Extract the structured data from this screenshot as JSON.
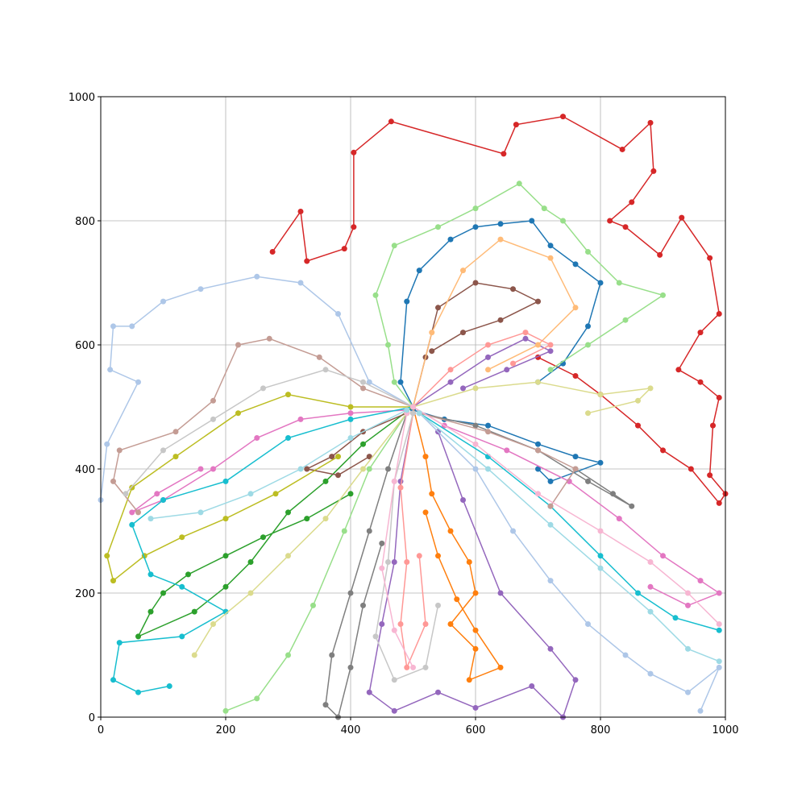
{
  "chart_data": {
    "type": "line",
    "xlim": [
      0,
      1000
    ],
    "ylim": [
      0,
      1000
    ],
    "xticks": [
      0,
      200,
      400,
      600,
      800,
      1000
    ],
    "yticks": [
      0,
      200,
      400,
      600,
      800,
      1000
    ],
    "grid": true,
    "series": [
      {
        "color": "#d62728",
        "x": [
          275,
          320,
          330,
          390,
          405,
          405,
          465,
          645,
          665,
          740,
          835,
          880,
          885,
          850,
          815,
          840,
          895,
          930,
          975,
          990,
          960,
          925,
          960,
          990,
          980,
          975,
          1000,
          990,
          945,
          900,
          860,
          800,
          760,
          700
        ],
        "values": [
          750,
          815,
          735,
          755,
          790,
          910,
          960,
          908,
          955,
          968,
          915,
          958,
          880,
          830,
          800,
          790,
          745,
          805,
          740,
          650,
          620,
          560,
          540,
          515,
          470,
          390,
          360,
          345,
          400,
          430,
          470,
          520,
          550,
          580
        ]
      },
      {
        "color": "#1f77b4",
        "x": [
          500,
          480,
          490,
          510,
          560,
          600,
          640,
          690,
          720,
          760,
          800,
          780,
          740,
          700
        ],
        "values": [
          500,
          540,
          670,
          720,
          770,
          790,
          795,
          800,
          760,
          730,
          700,
          630,
          570,
          540
        ]
      },
      {
        "color": "#1f77b4",
        "x": [
          500,
          550,
          620,
          700,
          760,
          800,
          720,
          700
        ],
        "values": [
          495,
          480,
          470,
          440,
          420,
          410,
          380,
          400
        ]
      },
      {
        "color": "#ff7f0e",
        "x": [
          500,
          520,
          530,
          560,
          590,
          600,
          560,
          600,
          590,
          640,
          600,
          570,
          540,
          520
        ],
        "values": [
          500,
          420,
          360,
          300,
          250,
          200,
          150,
          110,
          60,
          80,
          140,
          190,
          260,
          330
        ]
      },
      {
        "color": "#98df8a",
        "x": [
          500,
          470,
          460,
          440,
          470,
          540,
          600,
          670,
          710,
          740,
          780,
          830,
          900,
          840,
          780,
          720
        ],
        "values": [
          500,
          540,
          600,
          680,
          760,
          790,
          820,
          860,
          820,
          800,
          750,
          700,
          680,
          640,
          600,
          560
        ]
      },
      {
        "color": "#98df8a",
        "x": [
          490,
          430,
          390,
          340,
          300,
          250,
          200
        ],
        "values": [
          490,
          400,
          300,
          180,
          100,
          30,
          10
        ]
      },
      {
        "color": "#2ca02c",
        "x": [
          500,
          420,
          360,
          300,
          240,
          200,
          150,
          60,
          80,
          100,
          140,
          200,
          260,
          330,
          400
        ],
        "values": [
          500,
          440,
          380,
          330,
          250,
          210,
          170,
          130,
          170,
          200,
          230,
          260,
          290,
          320,
          360
        ]
      },
      {
        "color": "#9467bd",
        "x": [
          500,
          560,
          620,
          680,
          720,
          650,
          580
        ],
        "values": [
          500,
          540,
          580,
          610,
          590,
          560,
          530
        ]
      },
      {
        "color": "#9467bd",
        "x": [
          500,
          480,
          470,
          450,
          430,
          470,
          540,
          600,
          690,
          740,
          760,
          720,
          640,
          580,
          540
        ],
        "values": [
          490,
          380,
          250,
          150,
          40,
          10,
          40,
          15,
          50,
          0,
          60,
          110,
          200,
          350,
          460
        ]
      },
      {
        "color": "#8c564b",
        "x": [
          500,
          520,
          540,
          600,
          660,
          700,
          640,
          580,
          530
        ],
        "values": [
          500,
          580,
          660,
          700,
          690,
          670,
          640,
          620,
          590
        ]
      },
      {
        "color": "#8c564b",
        "x": [
          490,
          420,
          370,
          330,
          380,
          430
        ],
        "values": [
          490,
          460,
          420,
          400,
          390,
          420
        ]
      },
      {
        "color": "#e377c2",
        "x": [
          500,
          550,
          650,
          750,
          830,
          900,
          960,
          990,
          940,
          880
        ],
        "values": [
          500,
          470,
          430,
          380,
          320,
          260,
          220,
          200,
          180,
          210
        ]
      },
      {
        "color": "#e377c2",
        "x": [
          490,
          400,
          320,
          250,
          180,
          100,
          50,
          90,
          160
        ],
        "values": [
          495,
          490,
          480,
          450,
          400,
          350,
          330,
          360,
          400
        ]
      },
      {
        "color": "#7f7f7f",
        "x": [
          490,
          460,
          430,
          400,
          370,
          360,
          380,
          400,
          420,
          450
        ],
        "values": [
          490,
          400,
          300,
          200,
          100,
          20,
          0,
          80,
          180,
          280
        ]
      },
      {
        "color": "#7f7f7f",
        "x": [
          510,
          600,
          700,
          780,
          850,
          820,
          760
        ],
        "values": [
          490,
          470,
          430,
          380,
          340,
          360,
          400
        ]
      },
      {
        "color": "#bcbd22",
        "x": [
          500,
          400,
          300,
          220,
          120,
          50,
          10,
          20,
          70,
          130,
          200,
          280,
          380
        ],
        "values": [
          500,
          500,
          520,
          490,
          420,
          370,
          260,
          220,
          260,
          290,
          320,
          360,
          420
        ]
      },
      {
        "color": "#17becf",
        "x": [
          500,
          400,
          300,
          200,
          100,
          50,
          80,
          130,
          200,
          130,
          30,
          20,
          60,
          110
        ],
        "values": [
          500,
          480,
          450,
          380,
          350,
          310,
          230,
          210,
          170,
          130,
          120,
          60,
          40,
          50
        ]
      },
      {
        "color": "#17becf",
        "x": [
          510,
          620,
          720,
          800,
          860,
          920,
          990
        ],
        "values": [
          490,
          420,
          340,
          260,
          200,
          160,
          140
        ]
      },
      {
        "color": "#aec7e8",
        "x": [
          500,
          430,
          380,
          320,
          250,
          160,
          100,
          50,
          20,
          15,
          60,
          10,
          0
        ],
        "values": [
          500,
          540,
          650,
          700,
          710,
          690,
          670,
          630,
          630,
          560,
          540,
          440,
          350
        ]
      },
      {
        "color": "#aec7e8",
        "x": [
          510,
          600,
          660,
          720,
          780,
          840,
          880,
          940,
          990,
          960
        ],
        "values": [
          490,
          400,
          300,
          220,
          150,
          100,
          70,
          40,
          80,
          10
        ]
      },
      {
        "color": "#ffbb78",
        "x": [
          500,
          530,
          580,
          640,
          720,
          760,
          700,
          620
        ],
        "values": [
          500,
          620,
          720,
          770,
          740,
          660,
          600,
          560
        ]
      },
      {
        "color": "#ff9896",
        "x": [
          500,
          560,
          620,
          680,
          720,
          660
        ],
        "values": [
          500,
          560,
          600,
          620,
          600,
          570
        ]
      },
      {
        "color": "#ff9896",
        "x": [
          500,
          480,
          490,
          480,
          490,
          520,
          510
        ],
        "values": [
          490,
          370,
          250,
          150,
          80,
          150,
          260
        ]
      },
      {
        "color": "#c49c94",
        "x": [
          500,
          420,
          350,
          270,
          220,
          180,
          120,
          30,
          20,
          60
        ],
        "values": [
          500,
          530,
          580,
          610,
          600,
          510,
          460,
          430,
          380,
          330
        ]
      },
      {
        "color": "#c49c94",
        "x": [
          510,
          620,
          700,
          760,
          720
        ],
        "values": [
          490,
          460,
          430,
          400,
          340
        ]
      },
      {
        "color": "#c7c7c7",
        "x": [
          500,
          420,
          360,
          260,
          180,
          100,
          40
        ],
        "values": [
          500,
          540,
          560,
          530,
          480,
          430,
          360
        ]
      },
      {
        "color": "#c7c7c7",
        "x": [
          500,
          470,
          460,
          440,
          470,
          520,
          540
        ],
        "values": [
          490,
          380,
          250,
          130,
          60,
          80,
          180
        ]
      },
      {
        "color": "#dbdb8d",
        "x": [
          500,
          600,
          700,
          800,
          880,
          860,
          780
        ],
        "values": [
          500,
          530,
          540,
          520,
          530,
          510,
          490
        ]
      },
      {
        "color": "#dbdb8d",
        "x": [
          490,
          420,
          360,
          300,
          240,
          180,
          150
        ],
        "values": [
          490,
          400,
          320,
          260,
          200,
          150,
          100
        ]
      },
      {
        "color": "#f7b6d2",
        "x": [
          500,
          600,
          700,
          800,
          880,
          940,
          990
        ],
        "values": [
          500,
          440,
          360,
          300,
          250,
          200,
          150
        ]
      },
      {
        "color": "#f7b6d2",
        "x": [
          490,
          470,
          450,
          470,
          500
        ],
        "values": [
          490,
          380,
          240,
          140,
          80
        ]
      },
      {
        "color": "#9edae5",
        "x": [
          510,
          620,
          720,
          800,
          880,
          940,
          990
        ],
        "values": [
          490,
          400,
          310,
          240,
          170,
          110,
          90
        ]
      },
      {
        "color": "#9edae5",
        "x": [
          490,
          400,
          320,
          240,
          160,
          80
        ],
        "values": [
          495,
          450,
          400,
          360,
          330,
          320
        ]
      }
    ]
  }
}
